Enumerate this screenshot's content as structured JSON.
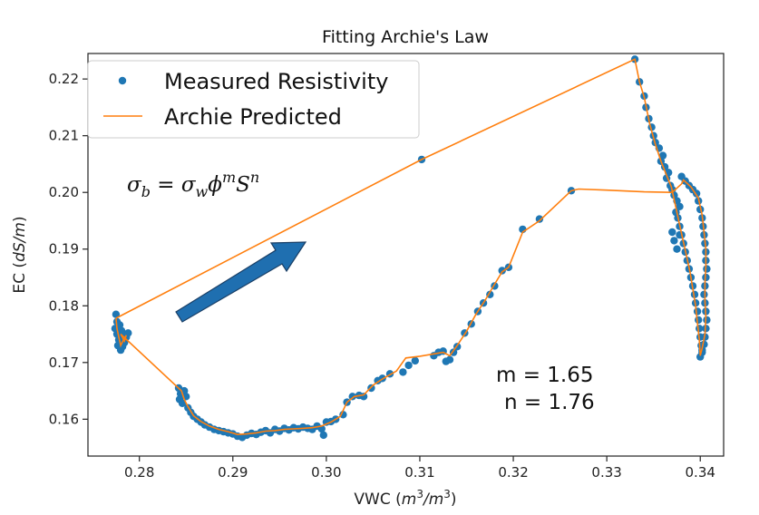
{
  "chart_data": {
    "type": "scatter",
    "title": "Fitting Archie's Law",
    "xlabel": "VWC",
    "xlabel_unit": "(m³/m³)",
    "ylabel": "EC",
    "ylabel_unit": "(dS/m)",
    "xlim": [
      0.2745,
      0.3425
    ],
    "ylim": [
      0.1535,
      0.2245
    ],
    "xticks": [
      0.28,
      0.29,
      0.3,
      0.31,
      0.32,
      0.33,
      0.34
    ],
    "xtick_labels": [
      "0.28",
      "0.29",
      "0.30",
      "0.31",
      "0.32",
      "0.33",
      "0.34"
    ],
    "yticks": [
      0.16,
      0.17,
      0.18,
      0.19,
      0.2,
      0.21,
      0.22
    ],
    "ytick_labels": [
      "0.16",
      "0.17",
      "0.18",
      "0.19",
      "0.20",
      "0.21",
      "0.22"
    ],
    "grid": false,
    "legend": {
      "position": "upper-left",
      "entries": [
        {
          "label": "Measured Resistivity",
          "marker": "dot",
          "color": "#1f77b4"
        },
        {
          "label": "Archie Predicted",
          "marker": "line",
          "color": "#ff7f0e"
        }
      ]
    },
    "formula": "σb = σwϕmSn",
    "annotations": [
      "m = 1.65",
      "n = 1.76"
    ],
    "arrow_color": "#1f6fb0",
    "series": [
      {
        "name": "Measured Resistivity",
        "kind": "scatter",
        "color": "#1f77b4",
        "points": [
          [
            0.2775,
            0.1785
          ],
          [
            0.2776,
            0.1772
          ],
          [
            0.2774,
            0.176
          ],
          [
            0.2776,
            0.175
          ],
          [
            0.2778,
            0.174
          ],
          [
            0.2777,
            0.173
          ],
          [
            0.278,
            0.1722
          ],
          [
            0.2782,
            0.1728
          ],
          [
            0.2784,
            0.1735
          ],
          [
            0.2786,
            0.1745
          ],
          [
            0.2788,
            0.1752
          ],
          [
            0.2783,
            0.1748
          ],
          [
            0.2779,
            0.1766
          ],
          [
            0.2781,
            0.1756
          ],
          [
            0.2842,
            0.1655
          ],
          [
            0.2844,
            0.1645
          ],
          [
            0.2843,
            0.1635
          ],
          [
            0.2846,
            0.1628
          ],
          [
            0.2848,
            0.165
          ],
          [
            0.285,
            0.164
          ],
          [
            0.2852,
            0.162
          ],
          [
            0.2855,
            0.1612
          ],
          [
            0.2858,
            0.1605
          ],
          [
            0.2862,
            0.16
          ],
          [
            0.2866,
            0.1595
          ],
          [
            0.287,
            0.159
          ],
          [
            0.2875,
            0.1586
          ],
          [
            0.288,
            0.1582
          ],
          [
            0.2885,
            0.158
          ],
          [
            0.289,
            0.1578
          ],
          [
            0.2895,
            0.1576
          ],
          [
            0.29,
            0.1574
          ],
          [
            0.2905,
            0.157
          ],
          [
            0.291,
            0.1568
          ],
          [
            0.2915,
            0.1572
          ],
          [
            0.292,
            0.1575
          ],
          [
            0.2925,
            0.1573
          ],
          [
            0.293,
            0.1577
          ],
          [
            0.2935,
            0.158
          ],
          [
            0.294,
            0.1576
          ],
          [
            0.2945,
            0.1582
          ],
          [
            0.295,
            0.1579
          ],
          [
            0.2955,
            0.1584
          ],
          [
            0.296,
            0.1581
          ],
          [
            0.2965,
            0.1585
          ],
          [
            0.297,
            0.1583
          ],
          [
            0.2975,
            0.1586
          ],
          [
            0.298,
            0.1584
          ],
          [
            0.2985,
            0.1582
          ],
          [
            0.299,
            0.1588
          ],
          [
            0.2995,
            0.1583
          ],
          [
            0.2997,
            0.1572
          ],
          [
            0.3,
            0.1595
          ],
          [
            0.3005,
            0.1596
          ],
          [
            0.301,
            0.16
          ],
          [
            0.3018,
            0.1608
          ],
          [
            0.3022,
            0.163
          ],
          [
            0.3028,
            0.164
          ],
          [
            0.3035,
            0.1642
          ],
          [
            0.304,
            0.164
          ],
          [
            0.3048,
            0.1655
          ],
          [
            0.3055,
            0.1668
          ],
          [
            0.306,
            0.1672
          ],
          [
            0.3068,
            0.168
          ],
          [
            0.3082,
            0.1683
          ],
          [
            0.3088,
            0.1695
          ],
          [
            0.3095,
            0.1703
          ],
          [
            0.3102,
            0.2058
          ],
          [
            0.3115,
            0.1712
          ],
          [
            0.312,
            0.1718
          ],
          [
            0.3125,
            0.172
          ],
          [
            0.3128,
            0.1702
          ],
          [
            0.3132,
            0.1705
          ],
          [
            0.3136,
            0.1718
          ],
          [
            0.314,
            0.1728
          ],
          [
            0.3148,
            0.1752
          ],
          [
            0.3155,
            0.1768
          ],
          [
            0.3162,
            0.179
          ],
          [
            0.3168,
            0.1805
          ],
          [
            0.3175,
            0.182
          ],
          [
            0.318,
            0.1835
          ],
          [
            0.3188,
            0.1862
          ],
          [
            0.3195,
            0.1868
          ],
          [
            0.321,
            0.1935
          ],
          [
            0.3228,
            0.1953
          ],
          [
            0.3262,
            0.2003
          ],
          [
            0.333,
            0.2235
          ],
          [
            0.3335,
            0.2195
          ],
          [
            0.334,
            0.217
          ],
          [
            0.3342,
            0.215
          ],
          [
            0.3345,
            0.213
          ],
          [
            0.3348,
            0.2115
          ],
          [
            0.335,
            0.21
          ],
          [
            0.3352,
            0.2088
          ],
          [
            0.3356,
            0.2078
          ],
          [
            0.336,
            0.2065
          ],
          [
            0.3358,
            0.2055
          ],
          [
            0.3362,
            0.2045
          ],
          [
            0.3366,
            0.2035
          ],
          [
            0.3364,
            0.2025
          ],
          [
            0.3368,
            0.2012
          ],
          [
            0.337,
            0.2005
          ],
          [
            0.3372,
            0.1995
          ],
          [
            0.3375,
            0.1985
          ],
          [
            0.3378,
            0.1975
          ],
          [
            0.3374,
            0.1965
          ],
          [
            0.3376,
            0.1955
          ],
          [
            0.3378,
            0.194
          ],
          [
            0.338,
            0.1925
          ],
          [
            0.3382,
            0.191
          ],
          [
            0.3384,
            0.1895
          ],
          [
            0.3386,
            0.188
          ],
          [
            0.3388,
            0.1865
          ],
          [
            0.339,
            0.185
          ],
          [
            0.3392,
            0.1835
          ],
          [
            0.3394,
            0.182
          ],
          [
            0.3395,
            0.1805
          ],
          [
            0.3397,
            0.179
          ],
          [
            0.3398,
            0.1775
          ],
          [
            0.3399,
            0.176
          ],
          [
            0.34,
            0.1745
          ],
          [
            0.3401,
            0.173
          ],
          [
            0.3402,
            0.1718
          ],
          [
            0.34,
            0.171
          ],
          [
            0.338,
            0.2028
          ],
          [
            0.3384,
            0.202
          ],
          [
            0.3388,
            0.2012
          ],
          [
            0.3392,
            0.2005
          ],
          [
            0.3396,
            0.1998
          ],
          [
            0.3398,
            0.1985
          ],
          [
            0.34,
            0.197
          ],
          [
            0.3402,
            0.1955
          ],
          [
            0.3403,
            0.194
          ],
          [
            0.3404,
            0.1925
          ],
          [
            0.3405,
            0.191
          ],
          [
            0.3406,
            0.1895
          ],
          [
            0.3406,
            0.188
          ],
          [
            0.3407,
            0.1865
          ],
          [
            0.3406,
            0.185
          ],
          [
            0.3405,
            0.1835
          ],
          [
            0.3404,
            0.182
          ],
          [
            0.3405,
            0.1805
          ],
          [
            0.3406,
            0.179
          ],
          [
            0.3407,
            0.1775
          ],
          [
            0.3406,
            0.176
          ],
          [
            0.3405,
            0.1745
          ],
          [
            0.3404,
            0.1732
          ],
          [
            0.3402,
            0.1722
          ],
          [
            0.337,
            0.193
          ],
          [
            0.3372,
            0.1915
          ],
          [
            0.3375,
            0.19
          ],
          [
            0.3378,
            0.1925
          ]
        ]
      },
      {
        "name": "Archie Predicted",
        "kind": "line",
        "color": "#ff7f0e",
        "points": [
          [
            0.2775,
            0.1778
          ],
          [
            0.2776,
            0.176
          ],
          [
            0.2778,
            0.1745
          ],
          [
            0.278,
            0.173
          ],
          [
            0.2783,
            0.174
          ],
          [
            0.2786,
            0.1748
          ],
          [
            0.2784,
            0.1738
          ],
          [
            0.278,
            0.175
          ],
          [
            0.2845,
            0.165
          ],
          [
            0.2848,
            0.1635
          ],
          [
            0.2852,
            0.1622
          ],
          [
            0.2858,
            0.1606
          ],
          [
            0.2866,
            0.1596
          ],
          [
            0.2875,
            0.1588
          ],
          [
            0.2885,
            0.1582
          ],
          [
            0.2895,
            0.1578
          ],
          [
            0.2905,
            0.1573
          ],
          [
            0.2915,
            0.1574
          ],
          [
            0.2925,
            0.1576
          ],
          [
            0.2935,
            0.1579
          ],
          [
            0.2945,
            0.158
          ],
          [
            0.2955,
            0.1582
          ],
          [
            0.2965,
            0.1583
          ],
          [
            0.2975,
            0.1584
          ],
          [
            0.2985,
            0.1585
          ],
          [
            0.2995,
            0.1588
          ],
          [
            0.3005,
            0.1595
          ],
          [
            0.3015,
            0.1605
          ],
          [
            0.3022,
            0.163
          ],
          [
            0.303,
            0.164
          ],
          [
            0.304,
            0.1643
          ],
          [
            0.305,
            0.166
          ],
          [
            0.306,
            0.1671
          ],
          [
            0.3075,
            0.1685
          ],
          [
            0.3085,
            0.1708
          ],
          [
            0.31,
            0.1711
          ],
          [
            0.3125,
            0.1718
          ],
          [
            0.3132,
            0.1712
          ],
          [
            0.314,
            0.173
          ],
          [
            0.315,
            0.1755
          ],
          [
            0.316,
            0.1785
          ],
          [
            0.317,
            0.181
          ],
          [
            0.318,
            0.1838
          ],
          [
            0.3188,
            0.186
          ],
          [
            0.3195,
            0.1868
          ],
          [
            0.321,
            0.193
          ],
          [
            0.3228,
            0.195
          ],
          [
            0.3262,
            0.2003
          ],
          [
            0.327,
            0.2006
          ],
          [
            0.33,
            0.2004
          ],
          [
            0.334,
            0.2001
          ],
          [
            0.337,
            0.2
          ],
          [
            0.338,
            0.2015
          ],
          [
            0.3382,
            0.2022
          ],
          [
            0.339,
            0.201
          ],
          [
            0.3398,
            0.199
          ],
          [
            0.3402,
            0.196
          ],
          [
            0.3404,
            0.193
          ],
          [
            0.3406,
            0.19
          ],
          [
            0.3406,
            0.187
          ],
          [
            0.3405,
            0.184
          ],
          [
            0.3405,
            0.181
          ],
          [
            0.3406,
            0.178
          ],
          [
            0.3405,
            0.175
          ],
          [
            0.3402,
            0.1725
          ],
          [
            0.34,
            0.1712
          ],
          [
            0.3399,
            0.174
          ],
          [
            0.3397,
            0.177
          ],
          [
            0.3395,
            0.18
          ],
          [
            0.3392,
            0.183
          ],
          [
            0.3389,
            0.186
          ],
          [
            0.3385,
            0.189
          ],
          [
            0.3381,
            0.192
          ],
          [
            0.3377,
            0.195
          ],
          [
            0.3373,
            0.198
          ],
          [
            0.3369,
            0.201
          ],
          [
            0.3364,
            0.203
          ],
          [
            0.3358,
            0.2055
          ],
          [
            0.3352,
            0.2085
          ],
          [
            0.3346,
            0.212
          ],
          [
            0.334,
            0.2168
          ],
          [
            0.3335,
            0.2195
          ],
          [
            0.333,
            0.2235
          ],
          [
            0.3102,
            0.2058
          ],
          [
            0.2775,
            0.1778
          ]
        ]
      }
    ]
  }
}
